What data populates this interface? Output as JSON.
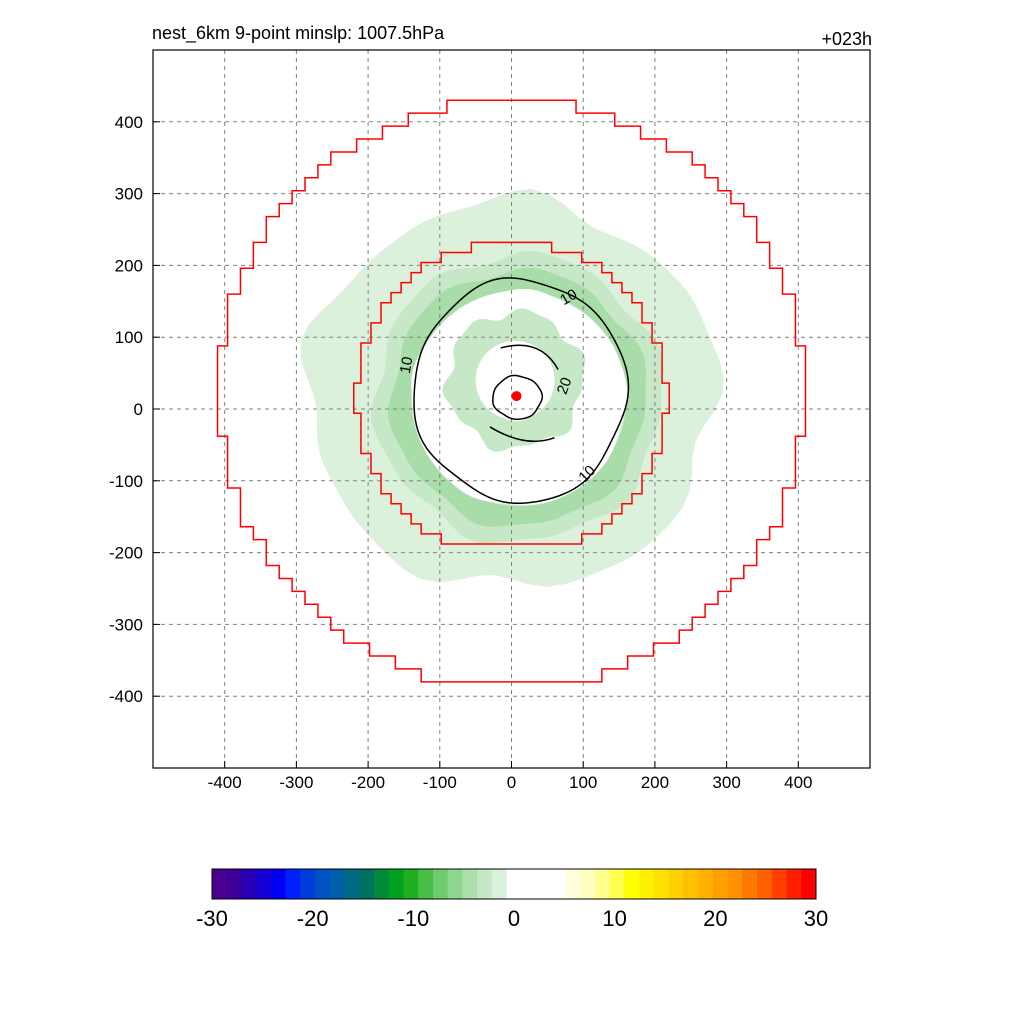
{
  "chart_data": {
    "type": "contour",
    "title_left": "nest_6km  9-point minslp: 1007.5hPa",
    "title_right": "+023h",
    "xlim": [
      -500,
      500
    ],
    "ylim": [
      -500,
      500
    ],
    "xticks": [
      -400,
      -300,
      -200,
      -100,
      0,
      100,
      200,
      300,
      400
    ],
    "yticks": [
      -400,
      -300,
      -200,
      -100,
      0,
      100,
      200,
      300,
      400
    ],
    "grid": true,
    "contour_lines": [
      {
        "level": 10,
        "label": "10"
      },
      {
        "level": 20,
        "label": "20"
      }
    ],
    "center_marker": {
      "x": 7,
      "y": 18,
      "color": "#ff0000"
    },
    "colorbar": {
      "range": [
        -30,
        30
      ],
      "ticks": [
        -30,
        -20,
        -10,
        0,
        10,
        20,
        30
      ],
      "colors": [
        "#4b0090",
        "#3c0099",
        "#2800b8",
        "#1600d6",
        "#0000f5",
        "#0020ff",
        "#003cd8",
        "#0052c2",
        "#005fa8",
        "#006b84",
        "#00735f",
        "#008a3a",
        "#00a221",
        "#1eb01e",
        "#48bd48",
        "#6fcb6f",
        "#8fd68f",
        "#acdfac",
        "#c6e8c6",
        "#dcf1dc",
        "#ffffff",
        "#ffffff",
        "#ffffff",
        "#ffffff",
        "#ffffe0",
        "#ffffc0",
        "#ffff90",
        "#ffff50",
        "#ffff00",
        "#fff000",
        "#ffe000",
        "#ffd000",
        "#ffc000",
        "#ffb000",
        "#ffa000",
        "#ff9000",
        "#ff7800",
        "#ff6000",
        "#ff4000",
        "#ff2000",
        "#ff0000"
      ]
    }
  }
}
